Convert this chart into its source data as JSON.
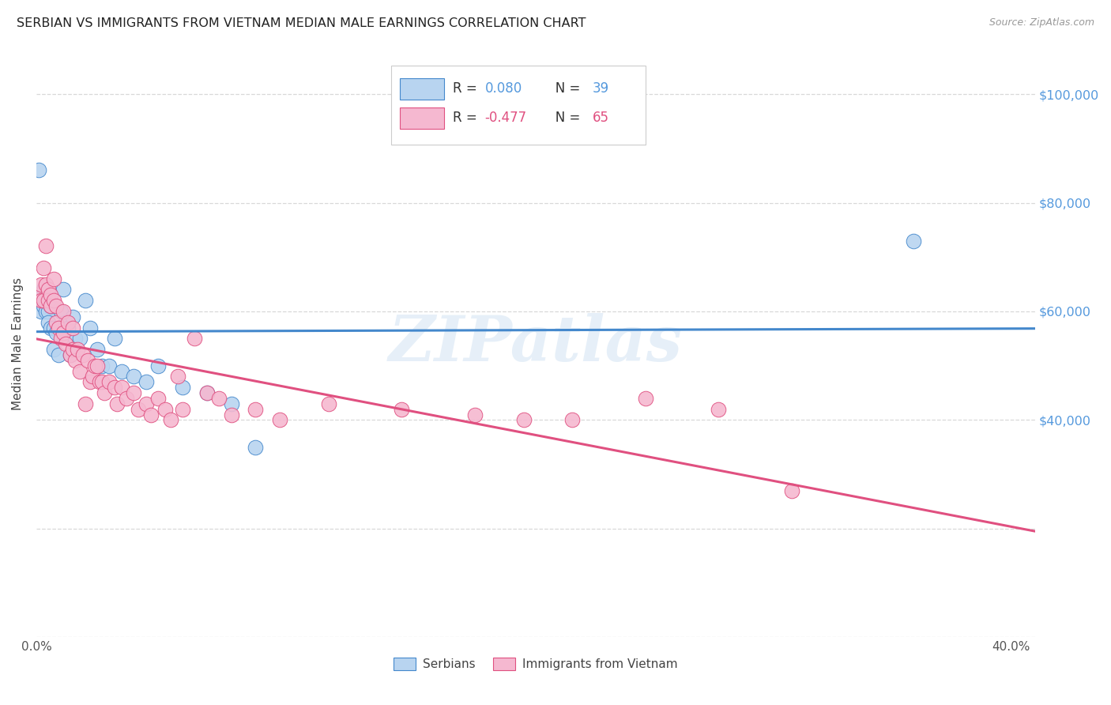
{
  "title": "SERBIAN VS IMMIGRANTS FROM VIETNAM MEDIAN MALE EARNINGS CORRELATION CHART",
  "source": "Source: ZipAtlas.com",
  "ylabel": "Median Male Earnings",
  "watermark": "ZIPatlas",
  "background_color": "#ffffff",
  "series": [
    {
      "name": "Serbians",
      "R": 0.08,
      "N": 39,
      "color": "#b8d4f0",
      "line_color": "#4488cc",
      "marker_edge_color": "#4488cc",
      "x": [
        0.001,
        0.002,
        0.002,
        0.003,
        0.003,
        0.004,
        0.004,
        0.005,
        0.005,
        0.005,
        0.006,
        0.006,
        0.007,
        0.007,
        0.008,
        0.009,
        0.01,
        0.011,
        0.012,
        0.013,
        0.014,
        0.015,
        0.016,
        0.018,
        0.02,
        0.022,
        0.025,
        0.027,
        0.03,
        0.032,
        0.035,
        0.04,
        0.045,
        0.05,
        0.06,
        0.07,
        0.08,
        0.09,
        0.36
      ],
      "y": [
        86000,
        63000,
        60000,
        64000,
        61000,
        62000,
        60000,
        63000,
        60000,
        58000,
        61000,
        57000,
        57000,
        53000,
        56000,
        52000,
        60000,
        64000,
        58000,
        57000,
        52000,
        59000,
        55000,
        55000,
        62000,
        57000,
        53000,
        50000,
        50000,
        55000,
        49000,
        48000,
        47000,
        50000,
        46000,
        45000,
        43000,
        35000,
        73000
      ]
    },
    {
      "name": "Immigrants from Vietnam",
      "R": -0.477,
      "N": 65,
      "color": "#f5b8d0",
      "line_color": "#e05080",
      "marker_edge_color": "#e05080",
      "x": [
        0.001,
        0.002,
        0.002,
        0.003,
        0.003,
        0.004,
        0.004,
        0.005,
        0.005,
        0.006,
        0.006,
        0.007,
        0.007,
        0.008,
        0.008,
        0.009,
        0.01,
        0.011,
        0.011,
        0.012,
        0.013,
        0.014,
        0.015,
        0.015,
        0.016,
        0.017,
        0.018,
        0.019,
        0.02,
        0.021,
        0.022,
        0.023,
        0.024,
        0.025,
        0.026,
        0.027,
        0.028,
        0.03,
        0.032,
        0.033,
        0.035,
        0.037,
        0.04,
        0.042,
        0.045,
        0.047,
        0.05,
        0.053,
        0.055,
        0.058,
        0.06,
        0.065,
        0.07,
        0.075,
        0.08,
        0.09,
        0.1,
        0.12,
        0.15,
        0.18,
        0.2,
        0.22,
        0.25,
        0.28,
        0.31
      ],
      "y": [
        63000,
        65000,
        62000,
        68000,
        62000,
        72000,
        65000,
        64000,
        62000,
        63000,
        61000,
        66000,
        62000,
        61000,
        58000,
        57000,
        55000,
        60000,
        56000,
        54000,
        58000,
        52000,
        57000,
        53000,
        51000,
        53000,
        49000,
        52000,
        43000,
        51000,
        47000,
        48000,
        50000,
        50000,
        47000,
        47000,
        45000,
        47000,
        46000,
        43000,
        46000,
        44000,
        45000,
        42000,
        43000,
        41000,
        44000,
        42000,
        40000,
        48000,
        42000,
        55000,
        45000,
        44000,
        41000,
        42000,
        40000,
        43000,
        42000,
        41000,
        40000,
        40000,
        44000,
        42000,
        27000
      ]
    }
  ],
  "yticks": [
    0,
    20000,
    40000,
    60000,
    80000,
    100000
  ],
  "ytick_labels_right": [
    "",
    "",
    "$40,000",
    "$60,000",
    "$80,000",
    "$100,000"
  ],
  "ylim": [
    0,
    108000
  ],
  "xlim": [
    0.0,
    0.41
  ],
  "xtick_positions": [
    0.0,
    0.1,
    0.2,
    0.3,
    0.4
  ],
  "xtick_labels": [
    "0.0%",
    "",
    "",
    "",
    "40.0%"
  ],
  "grid_color": "#d8d8d8",
  "right_label_color": "#5599dd",
  "legend_fontsize": 12,
  "title_fontsize": 11.5
}
